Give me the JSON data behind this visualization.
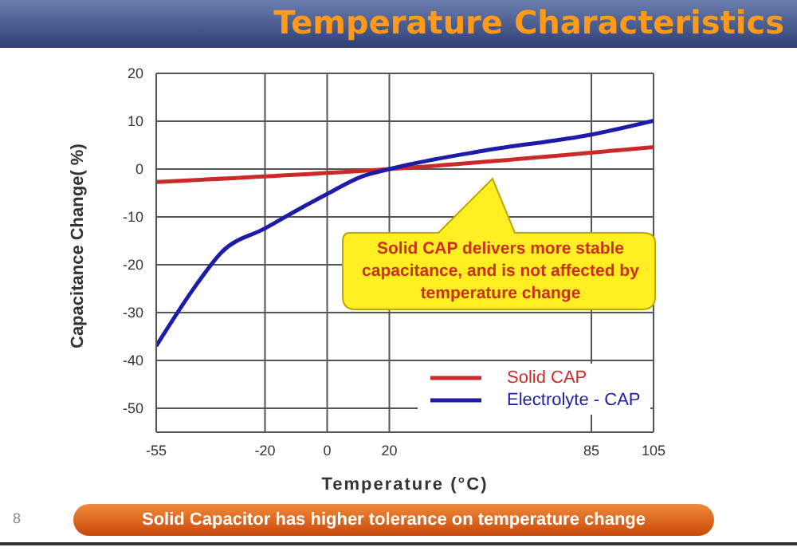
{
  "chart_data": {
    "type": "line",
    "title": "Temperature Characteristics",
    "xlabel": "Temperature (°C)",
    "ylabel": "Capacitance Change( %)",
    "xlim": [
      -55,
      105
    ],
    "xticks": [
      -55,
      -20,
      0,
      20,
      85,
      105
    ],
    "ylim": [
      -55,
      20
    ],
    "yticks": [
      -50,
      -40,
      -30,
      -20,
      -10,
      0,
      10,
      20
    ],
    "grid": true,
    "legend": "bottom right",
    "line_style": "solid",
    "marker": "none",
    "series": [
      {
        "name": "Solid CAP",
        "color": "#cc2a2a",
        "x": [
          -55,
          20,
          105
        ],
        "values": [
          -2.7,
          0,
          4.6
        ]
      },
      {
        "name": "Electrolyte - CAP",
        "color": "#1c1ca8",
        "x": [
          -55,
          -42,
          -34,
          -20,
          -8,
          0,
          11,
          20,
          50,
          85,
          105
        ],
        "values": [
          -37,
          -24.1,
          -17.4,
          -12.4,
          -8,
          -5.2,
          -1.6,
          0,
          3.8,
          7.2,
          10.1
        ]
      }
    ],
    "annotations": [
      "Solid  CAP delivers more stable capacitance, and is not affected by temperature change",
      "Solid Capacitor has higher tolerance on temperature change",
      "8"
    ]
  }
}
